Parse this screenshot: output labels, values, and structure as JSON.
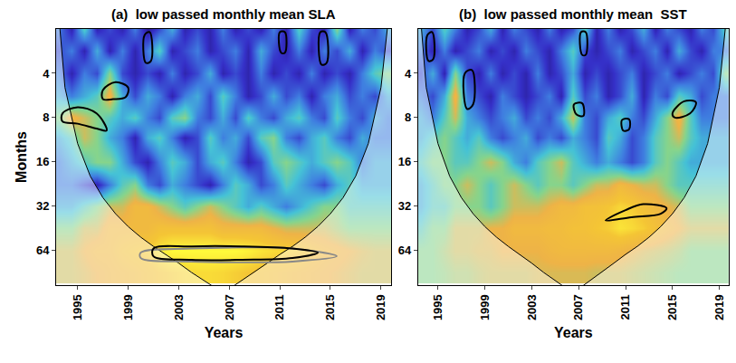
{
  "chart_data": [
    {
      "type": "heatmap",
      "title": "(a)  low passed monthly mean SLA",
      "xlabel": "Years",
      "ylabel": "Months",
      "log": "y",
      "xlim": [
        1993.3,
        2019.8
      ],
      "ylim": [
        2,
        110
      ],
      "xticks": [
        1995,
        1999,
        2003,
        2007,
        2011,
        2015,
        2019
      ],
      "yticks": [
        4,
        8,
        16,
        32,
        64
      ],
      "x": [
        1993.5,
        1994.5,
        1995.5,
        1996.5,
        1997.5,
        1998.5,
        1999.5,
        2000.5,
        2001.5,
        2002.5,
        2003.5,
        2004.5,
        2005.5,
        2006.5,
        2007.5,
        2008.5,
        2009.5,
        2010.5,
        2011.5,
        2012.5,
        2013.5,
        2014.5,
        2015.5,
        2016.5,
        2017.5,
        2018.5,
        2019.5
      ],
      "y": [
        2,
        2.8,
        4,
        5.7,
        8,
        11,
        16,
        23,
        32,
        45,
        64,
        90
      ],
      "zlim": [
        0,
        1
      ],
      "z": [
        [
          0.3,
          0.1,
          0.5,
          0.1,
          0.2,
          0.1,
          0.3,
          0.05,
          0.2,
          0.4,
          0.1,
          0.2,
          0.1,
          0.3,
          0.1,
          0.2,
          0.1,
          0.3,
          0.1,
          0.5,
          0.2,
          0.1,
          0.6,
          0.1,
          0.3,
          0.2,
          0.4
        ],
        [
          0.2,
          0.3,
          0.1,
          0.4,
          0.1,
          0.3,
          0.1,
          0.3,
          0.5,
          0.1,
          0.2,
          0.3,
          0.1,
          0.2,
          0.3,
          0.1,
          0.4,
          0.2,
          0.1,
          0.3,
          0.1,
          0.3,
          0.2,
          0.4,
          0.1,
          0.3,
          0.2
        ],
        [
          0.3,
          0.1,
          0.3,
          0.2,
          0.6,
          0.2,
          0.1,
          0.2,
          0.1,
          0.3,
          0.1,
          0.2,
          0.4,
          0.1,
          0.2,
          0.1,
          0.3,
          0.1,
          0.2,
          0.1,
          0.3,
          0.1,
          0.2,
          0.1,
          0.3,
          0.5,
          0.6
        ],
        [
          0.4,
          0.3,
          0.4,
          0.5,
          0.8,
          0.4,
          0.2,
          0.4,
          0.3,
          0.1,
          0.3,
          0.4,
          0.2,
          0.5,
          0.3,
          0.1,
          0.2,
          0.4,
          0.2,
          0.3,
          0.1,
          0.3,
          0.4,
          0.2,
          0.3,
          0.2,
          0.4
        ],
        [
          0.6,
          0.8,
          0.7,
          0.6,
          0.5,
          0.4,
          0.5,
          0.3,
          0.2,
          0.5,
          0.6,
          0.3,
          0.2,
          0.4,
          0.2,
          0.5,
          0.3,
          0.2,
          0.4,
          0.5,
          0.3,
          0.2,
          0.5,
          0.3,
          0.2,
          0.4,
          0.3
        ],
        [
          0.4,
          0.5,
          0.7,
          0.6,
          0.4,
          0.3,
          0.1,
          0.4,
          0.5,
          0.3,
          0.1,
          0.2,
          0.5,
          0.3,
          0.4,
          0.2,
          0.5,
          0.6,
          0.3,
          0.2,
          0.4,
          0.5,
          0.3,
          0.2,
          0.4,
          0.3,
          0.3
        ],
        [
          0.3,
          0.4,
          0.5,
          0.6,
          0.6,
          0.4,
          0.2,
          0.1,
          0.3,
          0.5,
          0.4,
          0.2,
          0.4,
          0.5,
          0.3,
          0.1,
          0.2,
          0.5,
          0.6,
          0.5,
          0.4,
          0.5,
          0.6,
          0.5,
          0.3,
          0.4,
          0.4
        ],
        [
          0.3,
          0.3,
          0.2,
          0.1,
          0.3,
          0.5,
          0.6,
          0.3,
          0.2,
          0.4,
          0.3,
          0.2,
          0.1,
          0.3,
          0.5,
          0.4,
          0.2,
          0.3,
          0.5,
          0.4,
          0.3,
          0.2,
          0.4,
          0.5,
          0.4,
          0.4,
          0.4
        ],
        [
          0.4,
          0.4,
          0.5,
          0.6,
          0.7,
          0.7,
          0.8,
          0.8,
          0.7,
          0.6,
          0.5,
          0.6,
          0.7,
          0.6,
          0.5,
          0.4,
          0.5,
          0.4,
          0.3,
          0.4,
          0.5,
          0.6,
          0.6,
          0.5,
          0.5,
          0.5,
          0.5
        ],
        [
          0.6,
          0.6,
          0.7,
          0.7,
          0.8,
          0.8,
          0.8,
          0.8,
          0.85,
          0.85,
          0.85,
          0.85,
          0.85,
          0.8,
          0.8,
          0.8,
          0.8,
          0.75,
          0.7,
          0.7,
          0.7,
          0.7,
          0.65,
          0.6,
          0.6,
          0.6,
          0.6
        ],
        [
          0.7,
          0.7,
          0.75,
          0.8,
          0.8,
          0.85,
          0.88,
          0.9,
          0.95,
          1,
          1,
          1,
          1,
          1,
          1,
          0.98,
          0.95,
          0.93,
          0.92,
          0.9,
          0.85,
          0.8,
          0.78,
          0.75,
          0.72,
          0.7,
          0.7
        ],
        [
          0.7,
          0.7,
          0.72,
          0.75,
          0.78,
          0.8,
          0.82,
          0.85,
          0.88,
          0.9,
          0.92,
          0.93,
          0.93,
          0.92,
          0.9,
          0.88,
          0.86,
          0.84,
          0.82,
          0.8,
          0.78,
          0.76,
          0.74,
          0.72,
          0.7,
          0.7,
          0.7
        ]
      ],
      "cone": {
        "x": [
          1993.6,
          1994,
          1995,
          1996,
          1997,
          1998,
          1999,
          2000,
          2001,
          2002,
          2003,
          2004,
          2005,
          2005.7,
          2007.3,
          2008,
          2009,
          2010,
          2011,
          2012,
          2013,
          2014,
          2015,
          2016,
          2017,
          2018,
          2019,
          2019.5
        ],
        "y": [
          2,
          5,
          12,
          20,
          28,
          36,
          44,
          52,
          60,
          68,
          78,
          90,
          102,
          112,
          112,
          102,
          90,
          78,
          68,
          60,
          52,
          44,
          36,
          28,
          20,
          12,
          5,
          2
        ]
      },
      "contours": [
        {
          "color": "#888888",
          "x": [
            2000,
            2004,
            2008,
            2012,
            2015.5,
            2012,
            2008,
            2004,
            2000,
            2000
          ],
          "y": [
            66,
            62,
            61,
            62,
            70,
            76,
            77,
            76,
            72,
            66
          ]
        },
        {
          "color": "#000000",
          "x": [
            2001,
            2004,
            2008,
            2012,
            2014,
            2012,
            2008,
            2004,
            2001,
            2001
          ],
          "y": [
            62,
            60,
            60,
            62,
            66,
            72,
            74,
            74,
            70,
            62
          ]
        },
        {
          "color": "#000000",
          "x": [
            1993.8,
            1995,
            1996.5,
            1997.3,
            1996.5,
            1995,
            1993.8,
            1993.8
          ],
          "y": [
            7.5,
            6.8,
            7.5,
            9.8,
            9.5,
            8.8,
            8.5,
            7.5
          ]
        },
        {
          "color": "#000000",
          "x": [
            1997,
            1998,
            1999,
            1998.8,
            1997.8,
            1997,
            1997
          ],
          "y": [
            5.2,
            4.6,
            5,
            5.8,
            6,
            6,
            5.2
          ]
        },
        {
          "color": "#000000",
          "x": [
            2000.3,
            2000.7,
            2000.8,
            2000.4,
            2000.3
          ],
          "y": [
            2.2,
            2.1,
            3.3,
            3.4,
            2.2
          ]
        },
        {
          "color": "#000000",
          "x": [
            2014.2,
            2014.6,
            2014.7,
            2014.3,
            2014.2
          ],
          "y": [
            2.1,
            2.1,
            3.4,
            3.5,
            2.1
          ]
        },
        {
          "color": "#000000",
          "x": [
            2011,
            2011.4,
            2011.4,
            2011.1,
            2011
          ],
          "y": [
            2.1,
            2.1,
            2.9,
            2.9,
            2.1
          ]
        }
      ]
    },
    {
      "type": "heatmap",
      "title": "(b)  low passed monthly mean  SST",
      "xlabel": "Years",
      "log": "y",
      "xlim": [
        1993.3,
        2019.8
      ],
      "ylim": [
        2,
        110
      ],
      "xticks": [
        1995,
        1999,
        2003,
        2007,
        2011,
        2015,
        2019
      ],
      "yticks": [
        4,
        8,
        16,
        32,
        64
      ],
      "x": [
        1993.5,
        1994.5,
        1995.5,
        1996.5,
        1997.5,
        1998.5,
        1999.5,
        2000.5,
        2001.5,
        2002.5,
        2003.5,
        2004.5,
        2005.5,
        2006.5,
        2007.5,
        2008.5,
        2009.5,
        2010.5,
        2011.5,
        2012.5,
        2013.5,
        2014.5,
        2015.5,
        2016.5,
        2017.5,
        2018.5,
        2019.5
      ],
      "y": [
        2,
        2.8,
        4,
        5.7,
        8,
        11,
        16,
        23,
        32,
        45,
        64,
        90
      ],
      "zlim": [
        0,
        1
      ],
      "z": [
        [
          0.4,
          0.2,
          0.5,
          0.3,
          0.1,
          0.2,
          0.4,
          0.1,
          0.3,
          0.2,
          0.1,
          0.3,
          0.1,
          0.2,
          0.5,
          0.1,
          0.3,
          0.1,
          0.2,
          0.4,
          0.1,
          0.3,
          0.2,
          0.1,
          0.3,
          0.2,
          0.5
        ],
        [
          0.3,
          0.1,
          0.3,
          0.1,
          0.2,
          0.3,
          0.1,
          0.2,
          0.1,
          0.3,
          0.2,
          0.1,
          0.3,
          0.5,
          0.2,
          0.1,
          0.2,
          0.3,
          0.1,
          0.2,
          0.3,
          0.1,
          0.4,
          0.2,
          0.1,
          0.3,
          0.3
        ],
        [
          0.2,
          0.4,
          0.1,
          0.6,
          0.2,
          0.1,
          0.3,
          0.1,
          0.2,
          0.1,
          0.3,
          0.1,
          0.2,
          0.4,
          0.1,
          0.2,
          0.1,
          0.2,
          0.3,
          0.1,
          0.2,
          0.3,
          0.1,
          0.2,
          0.3,
          0.2,
          0.6
        ],
        [
          0.3,
          0.2,
          0.4,
          0.8,
          0.3,
          0.2,
          0.1,
          0.3,
          0.2,
          0.1,
          0.2,
          0.3,
          0.1,
          0.5,
          0.2,
          0.3,
          0.1,
          0.2,
          0.4,
          0.1,
          0.3,
          0.2,
          0.5,
          0.4,
          0.2,
          0.3,
          0.3
        ],
        [
          0.4,
          0.3,
          0.5,
          0.7,
          0.4,
          0.3,
          0.2,
          0.3,
          0.4,
          0.2,
          0.3,
          0.2,
          0.4,
          0.7,
          0.3,
          0.2,
          0.4,
          0.5,
          0.3,
          0.2,
          0.4,
          0.6,
          0.8,
          0.5,
          0.3,
          0.3,
          0.3
        ],
        [
          0.4,
          0.5,
          0.6,
          0.5,
          0.4,
          0.5,
          0.3,
          0.2,
          0.3,
          0.4,
          0.2,
          0.3,
          0.2,
          0.4,
          0.3,
          0.2,
          0.5,
          0.4,
          0.2,
          0.3,
          0.5,
          0.6,
          0.7,
          0.5,
          0.4,
          0.4,
          0.4
        ],
        [
          0.5,
          0.6,
          0.6,
          0.5,
          0.5,
          0.6,
          0.7,
          0.6,
          0.4,
          0.3,
          0.5,
          0.6,
          0.7,
          0.5,
          0.4,
          0.3,
          0.4,
          0.3,
          0.2,
          0.3,
          0.5,
          0.6,
          0.5,
          0.4,
          0.4,
          0.4,
          0.4
        ],
        [
          0.4,
          0.5,
          0.6,
          0.6,
          0.7,
          0.6,
          0.5,
          0.6,
          0.7,
          0.6,
          0.5,
          0.6,
          0.6,
          0.5,
          0.6,
          0.7,
          0.7,
          0.8,
          0.75,
          0.7,
          0.7,
          0.6,
          0.5,
          0.5,
          0.5,
          0.5,
          0.5
        ],
        [
          0.4,
          0.5,
          0.5,
          0.6,
          0.6,
          0.6,
          0.5,
          0.6,
          0.7,
          0.7,
          0.7,
          0.75,
          0.8,
          0.8,
          0.85,
          0.85,
          0.88,
          0.92,
          0.9,
          0.85,
          0.8,
          0.75,
          0.7,
          0.6,
          0.6,
          0.6,
          0.6
        ],
        [
          0.5,
          0.6,
          0.6,
          0.7,
          0.7,
          0.7,
          0.75,
          0.75,
          0.8,
          0.8,
          0.8,
          0.82,
          0.82,
          0.85,
          0.85,
          0.88,
          0.9,
          0.95,
          0.93,
          0.9,
          0.85,
          0.8,
          0.75,
          0.7,
          0.7,
          0.7,
          0.7
        ],
        [
          0.6,
          0.6,
          0.65,
          0.7,
          0.7,
          0.72,
          0.72,
          0.75,
          0.75,
          0.75,
          0.75,
          0.78,
          0.8,
          0.8,
          0.8,
          0.8,
          0.8,
          0.78,
          0.75,
          0.72,
          0.7,
          0.68,
          0.65,
          0.6,
          0.6,
          0.6,
          0.6
        ],
        [
          0.6,
          0.6,
          0.62,
          0.65,
          0.65,
          0.68,
          0.7,
          0.7,
          0.7,
          0.7,
          0.72,
          0.72,
          0.72,
          0.72,
          0.72,
          0.7,
          0.7,
          0.7,
          0.68,
          0.66,
          0.64,
          0.62,
          0.6,
          0.6,
          0.6,
          0.6,
          0.6
        ]
      ],
      "cone": {
        "x": [
          1993.6,
          1994,
          1995,
          1996,
          1997,
          1998,
          1999,
          2000,
          2001,
          2002,
          2003,
          2004,
          2005,
          2005.7,
          2007.3,
          2008,
          2009,
          2010,
          2011,
          2012,
          2013,
          2014,
          2015,
          2016,
          2017,
          2018,
          2019,
          2019.5
        ],
        "y": [
          2,
          5,
          12,
          20,
          28,
          36,
          44,
          52,
          60,
          68,
          78,
          90,
          102,
          112,
          112,
          102,
          90,
          78,
          68,
          60,
          52,
          44,
          36,
          28,
          20,
          12,
          5,
          2
        ]
      },
      "contours": [
        {
          "color": "#000000",
          "x": [
            2009.3,
            2011,
            2012.5,
            2014.5,
            2014,
            2011.5,
            2009.3
          ],
          "y": [
            40,
            34,
            31,
            33,
            36,
            38,
            40
          ]
        },
        {
          "color": "#000000",
          "x": [
            2015,
            2016,
            2017,
            2016.5,
            2015.2,
            2015
          ],
          "y": [
            7.5,
            6.2,
            6.3,
            7.5,
            8,
            7.5
          ]
        },
        {
          "color": "#000000",
          "x": [
            1997.3,
            1997.9,
            1998,
            1997.5,
            1997.3
          ],
          "y": [
            4,
            3.8,
            6.5,
            7,
            4
          ]
        },
        {
          "color": "#000000",
          "x": [
            2006.6,
            2007.3,
            2007.4,
            2006.8,
            2006.6
          ],
          "y": [
            6.5,
            6.4,
            7.8,
            7.6,
            6.5
          ]
        },
        {
          "color": "#000000",
          "x": [
            2010.7,
            2011.3,
            2011.3,
            2010.8,
            2010.7
          ],
          "y": [
            8.3,
            8.2,
            9.6,
            9.8,
            8.3
          ]
        },
        {
          "color": "#000000",
          "x": [
            1994.1,
            1994.5,
            1994.6,
            1994.2,
            1994.1
          ],
          "y": [
            2.2,
            2.1,
            3.2,
            3.3,
            2.2
          ]
        },
        {
          "color": "#000000",
          "x": [
            2007.2,
            2007.6,
            2007.6,
            2007.3,
            2007.2
          ],
          "y": [
            2.1,
            2.1,
            3,
            3,
            2.1
          ]
        }
      ]
    }
  ]
}
